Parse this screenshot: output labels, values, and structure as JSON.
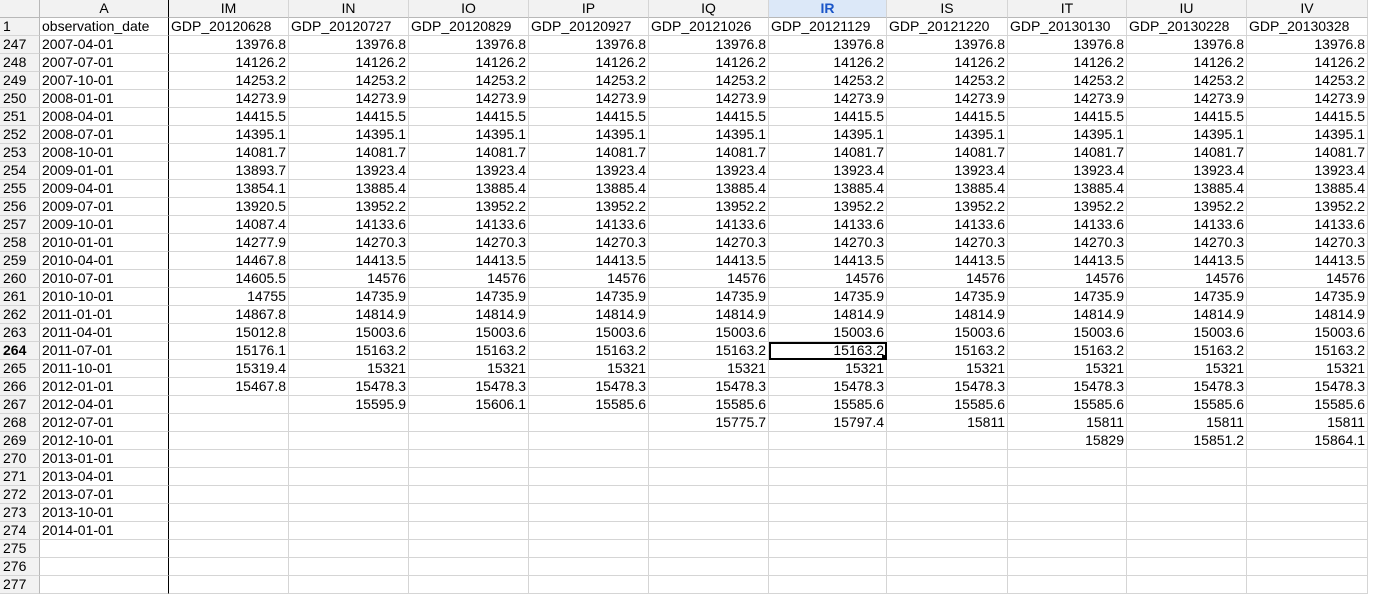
{
  "column_letters": [
    "A",
    "IM",
    "IN",
    "IO",
    "IP",
    "IQ",
    "IR",
    "IS",
    "IT",
    "IU",
    "IV"
  ],
  "selected_column": "IR",
  "selected_row": "264",
  "header_row": {
    "row_number": "1",
    "cells": [
      "observation_date",
      "GDP_20120628",
      "GDP_20120727",
      "GDP_20120829",
      "GDP_20120927",
      "GDP_20121026",
      "GDP_20121129",
      "GDP_20121220",
      "GDP_20130130",
      "GDP_20130228",
      "GDP_20130328"
    ]
  },
  "rows": [
    {
      "n": "247",
      "cells": [
        "2007-04-01",
        "13976.8",
        "13976.8",
        "13976.8",
        "13976.8",
        "13976.8",
        "13976.8",
        "13976.8",
        "13976.8",
        "13976.8",
        "13976.8"
      ]
    },
    {
      "n": "248",
      "cells": [
        "2007-07-01",
        "14126.2",
        "14126.2",
        "14126.2",
        "14126.2",
        "14126.2",
        "14126.2",
        "14126.2",
        "14126.2",
        "14126.2",
        "14126.2"
      ]
    },
    {
      "n": "249",
      "cells": [
        "2007-10-01",
        "14253.2",
        "14253.2",
        "14253.2",
        "14253.2",
        "14253.2",
        "14253.2",
        "14253.2",
        "14253.2",
        "14253.2",
        "14253.2"
      ]
    },
    {
      "n": "250",
      "cells": [
        "2008-01-01",
        "14273.9",
        "14273.9",
        "14273.9",
        "14273.9",
        "14273.9",
        "14273.9",
        "14273.9",
        "14273.9",
        "14273.9",
        "14273.9"
      ]
    },
    {
      "n": "251",
      "cells": [
        "2008-04-01",
        "14415.5",
        "14415.5",
        "14415.5",
        "14415.5",
        "14415.5",
        "14415.5",
        "14415.5",
        "14415.5",
        "14415.5",
        "14415.5"
      ]
    },
    {
      "n": "252",
      "cells": [
        "2008-07-01",
        "14395.1",
        "14395.1",
        "14395.1",
        "14395.1",
        "14395.1",
        "14395.1",
        "14395.1",
        "14395.1",
        "14395.1",
        "14395.1"
      ]
    },
    {
      "n": "253",
      "cells": [
        "2008-10-01",
        "14081.7",
        "14081.7",
        "14081.7",
        "14081.7",
        "14081.7",
        "14081.7",
        "14081.7",
        "14081.7",
        "14081.7",
        "14081.7"
      ]
    },
    {
      "n": "254",
      "cells": [
        "2009-01-01",
        "13893.7",
        "13923.4",
        "13923.4",
        "13923.4",
        "13923.4",
        "13923.4",
        "13923.4",
        "13923.4",
        "13923.4",
        "13923.4"
      ]
    },
    {
      "n": "255",
      "cells": [
        "2009-04-01",
        "13854.1",
        "13885.4",
        "13885.4",
        "13885.4",
        "13885.4",
        "13885.4",
        "13885.4",
        "13885.4",
        "13885.4",
        "13885.4"
      ]
    },
    {
      "n": "256",
      "cells": [
        "2009-07-01",
        "13920.5",
        "13952.2",
        "13952.2",
        "13952.2",
        "13952.2",
        "13952.2",
        "13952.2",
        "13952.2",
        "13952.2",
        "13952.2"
      ]
    },
    {
      "n": "257",
      "cells": [
        "2009-10-01",
        "14087.4",
        "14133.6",
        "14133.6",
        "14133.6",
        "14133.6",
        "14133.6",
        "14133.6",
        "14133.6",
        "14133.6",
        "14133.6"
      ]
    },
    {
      "n": "258",
      "cells": [
        "2010-01-01",
        "14277.9",
        "14270.3",
        "14270.3",
        "14270.3",
        "14270.3",
        "14270.3",
        "14270.3",
        "14270.3",
        "14270.3",
        "14270.3"
      ]
    },
    {
      "n": "259",
      "cells": [
        "2010-04-01",
        "14467.8",
        "14413.5",
        "14413.5",
        "14413.5",
        "14413.5",
        "14413.5",
        "14413.5",
        "14413.5",
        "14413.5",
        "14413.5"
      ]
    },
    {
      "n": "260",
      "cells": [
        "2010-07-01",
        "14605.5",
        "14576",
        "14576",
        "14576",
        "14576",
        "14576",
        "14576",
        "14576",
        "14576",
        "14576"
      ]
    },
    {
      "n": "261",
      "cells": [
        "2010-10-01",
        "14755",
        "14735.9",
        "14735.9",
        "14735.9",
        "14735.9",
        "14735.9",
        "14735.9",
        "14735.9",
        "14735.9",
        "14735.9"
      ]
    },
    {
      "n": "262",
      "cells": [
        "2011-01-01",
        "14867.8",
        "14814.9",
        "14814.9",
        "14814.9",
        "14814.9",
        "14814.9",
        "14814.9",
        "14814.9",
        "14814.9",
        "14814.9"
      ]
    },
    {
      "n": "263",
      "cells": [
        "2011-04-01",
        "15012.8",
        "15003.6",
        "15003.6",
        "15003.6",
        "15003.6",
        "15003.6",
        "15003.6",
        "15003.6",
        "15003.6",
        "15003.6"
      ]
    },
    {
      "n": "264",
      "cells": [
        "2011-07-01",
        "15176.1",
        "15163.2",
        "15163.2",
        "15163.2",
        "15163.2",
        "15163.2",
        "15163.2",
        "15163.2",
        "15163.2",
        "15163.2"
      ]
    },
    {
      "n": "265",
      "cells": [
        "2011-10-01",
        "15319.4",
        "15321",
        "15321",
        "15321",
        "15321",
        "15321",
        "15321",
        "15321",
        "15321",
        "15321"
      ]
    },
    {
      "n": "266",
      "cells": [
        "2012-01-01",
        "15467.8",
        "15478.3",
        "15478.3",
        "15478.3",
        "15478.3",
        "15478.3",
        "15478.3",
        "15478.3",
        "15478.3",
        "15478.3"
      ]
    },
    {
      "n": "267",
      "cells": [
        "2012-04-01",
        "",
        "15595.9",
        "15606.1",
        "15585.6",
        "15585.6",
        "15585.6",
        "15585.6",
        "15585.6",
        "15585.6",
        "15585.6"
      ]
    },
    {
      "n": "268",
      "cells": [
        "2012-07-01",
        "",
        "",
        "",
        "",
        "15775.7",
        "15797.4",
        "15811",
        "15811",
        "15811",
        "15811"
      ]
    },
    {
      "n": "269",
      "cells": [
        "2012-10-01",
        "",
        "",
        "",
        "",
        "",
        "",
        "",
        "15829",
        "15851.2",
        "15864.1"
      ]
    },
    {
      "n": "270",
      "cells": [
        "2013-01-01",
        "",
        "",
        "",
        "",
        "",
        "",
        "",
        "",
        "",
        ""
      ]
    },
    {
      "n": "271",
      "cells": [
        "2013-04-01",
        "",
        "",
        "",
        "",
        "",
        "",
        "",
        "",
        "",
        ""
      ]
    },
    {
      "n": "272",
      "cells": [
        "2013-07-01",
        "",
        "",
        "",
        "",
        "",
        "",
        "",
        "",
        "",
        ""
      ]
    },
    {
      "n": "273",
      "cells": [
        "2013-10-01",
        "",
        "",
        "",
        "",
        "",
        "",
        "",
        "",
        "",
        ""
      ]
    },
    {
      "n": "274",
      "cells": [
        "2014-01-01",
        "",
        "",
        "",
        "",
        "",
        "",
        "",
        "",
        "",
        ""
      ]
    },
    {
      "n": "275",
      "cells": [
        "",
        "",
        "",
        "",
        "",
        "",
        "",
        "",
        "",
        "",
        ""
      ]
    },
    {
      "n": "276",
      "cells": [
        "",
        "",
        "",
        "",
        "",
        "",
        "",
        "",
        "",
        "",
        ""
      ]
    },
    {
      "n": "277",
      "cells": [
        "",
        "",
        "",
        "",
        "",
        "",
        "",
        "",
        "",
        "",
        ""
      ]
    }
  ]
}
